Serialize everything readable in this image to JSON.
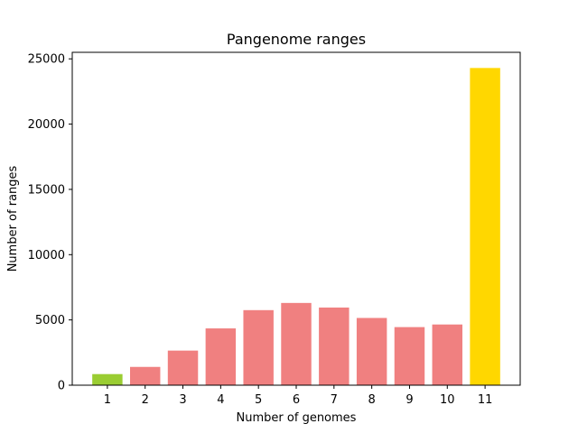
{
  "chart_data": {
    "type": "bar",
    "title": "Pangenome ranges",
    "xlabel": "Number of genomes",
    "ylabel": "Number of ranges",
    "categories": [
      "1",
      "2",
      "3",
      "4",
      "5",
      "6",
      "7",
      "8",
      "9",
      "10",
      "11"
    ],
    "values": [
      850,
      1400,
      2650,
      4350,
      5750,
      6300,
      5950,
      5150,
      4450,
      4650,
      24300
    ],
    "colors": [
      "#9acd32",
      "#f08080",
      "#f08080",
      "#f08080",
      "#f08080",
      "#f08080",
      "#f08080",
      "#f08080",
      "#f08080",
      "#f08080",
      "#ffd700"
    ],
    "ylim": [
      0,
      25500
    ],
    "yticks": [
      0,
      5000,
      10000,
      15000,
      20000,
      25000
    ],
    "grid": false,
    "legend": false
  }
}
